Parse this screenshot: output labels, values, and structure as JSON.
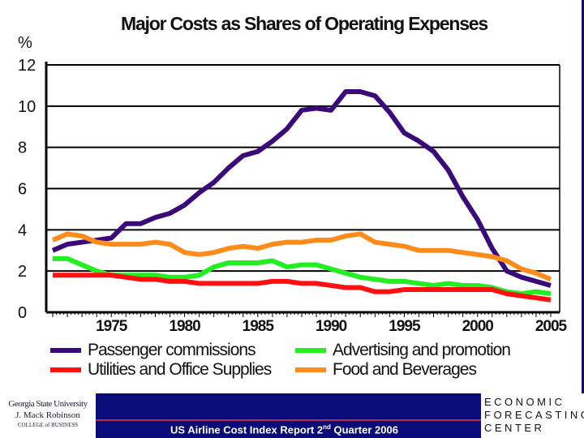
{
  "chart_data": {
    "type": "line",
    "title": "Major Costs as Shares of Operating Expenses",
    "ylabel": "%",
    "xlabel": "",
    "ylim": [
      0,
      12
    ],
    "xlim": [
      1971,
      2005
    ],
    "yticks": [
      "0",
      "2",
      "4",
      "6",
      "8",
      "10",
      "12"
    ],
    "xticks": [
      "1975",
      "1980",
      "1985",
      "1990",
      "1995",
      "2000",
      "2005"
    ],
    "grid": true,
    "legend_placement": "bottom",
    "x": [
      1971,
      1972,
      1973,
      1974,
      1975,
      1976,
      1977,
      1978,
      1979,
      1980,
      1981,
      1982,
      1983,
      1984,
      1985,
      1986,
      1987,
      1988,
      1989,
      1990,
      1991,
      1992,
      1993,
      1994,
      1995,
      1996,
      1997,
      1998,
      1999,
      2000,
      2001,
      2002,
      2003,
      2004,
      2005
    ],
    "series": [
      {
        "name": "Passenger commissions",
        "color": "#3a0a7a",
        "values": [
          3.0,
          3.3,
          3.4,
          3.5,
          3.6,
          4.3,
          4.3,
          4.6,
          4.8,
          5.2,
          5.8,
          6.3,
          7.0,
          7.6,
          7.8,
          8.3,
          8.9,
          9.8,
          9.9,
          9.8,
          10.7,
          10.7,
          10.5,
          9.7,
          8.7,
          8.3,
          7.8,
          6.9,
          5.6,
          4.5,
          3.1,
          2.0,
          1.7,
          1.5,
          1.3
        ]
      },
      {
        "name": "Advertising and promotion",
        "color": "#22ee22",
        "values": [
          2.6,
          2.6,
          2.3,
          2.0,
          1.8,
          1.8,
          1.8,
          1.8,
          1.7,
          1.7,
          1.8,
          2.2,
          2.4,
          2.4,
          2.4,
          2.5,
          2.2,
          2.3,
          2.3,
          2.1,
          1.9,
          1.7,
          1.6,
          1.5,
          1.5,
          1.4,
          1.3,
          1.4,
          1.3,
          1.3,
          1.2,
          1.0,
          0.9,
          1.0,
          0.9
        ]
      },
      {
        "name": "Utilities and Office Supplies",
        "color": "#ff1010",
        "values": [
          1.8,
          1.8,
          1.8,
          1.8,
          1.8,
          1.7,
          1.6,
          1.6,
          1.5,
          1.5,
          1.4,
          1.4,
          1.4,
          1.4,
          1.4,
          1.5,
          1.5,
          1.4,
          1.4,
          1.3,
          1.2,
          1.2,
          1.0,
          1.0,
          1.1,
          1.1,
          1.1,
          1.1,
          1.1,
          1.1,
          1.1,
          0.9,
          0.8,
          0.7,
          0.6
        ]
      },
      {
        "name": "Food and Beverages",
        "color": "#ff8c1a",
        "values": [
          3.5,
          3.8,
          3.7,
          3.4,
          3.3,
          3.3,
          3.3,
          3.4,
          3.3,
          2.9,
          2.8,
          2.9,
          3.1,
          3.2,
          3.1,
          3.3,
          3.4,
          3.4,
          3.5,
          3.5,
          3.7,
          3.8,
          3.4,
          3.3,
          3.2,
          3.0,
          3.0,
          3.0,
          2.9,
          2.8,
          2.7,
          2.5,
          2.1,
          1.9,
          1.6
        ]
      }
    ]
  },
  "footer": {
    "report": "US Airline Cost Index Report 2",
    "report_sup": "nd",
    "report_end": " Quarter 2006",
    "left_logo": [
      "Georgia State University",
      "J. Mack Robinson",
      "COLLEGE of BUSINESS"
    ],
    "right_logo": [
      "ECONOMIC",
      "FORECASTING",
      "CENTER"
    ]
  },
  "colors": {
    "banner": "#0a0a78"
  }
}
